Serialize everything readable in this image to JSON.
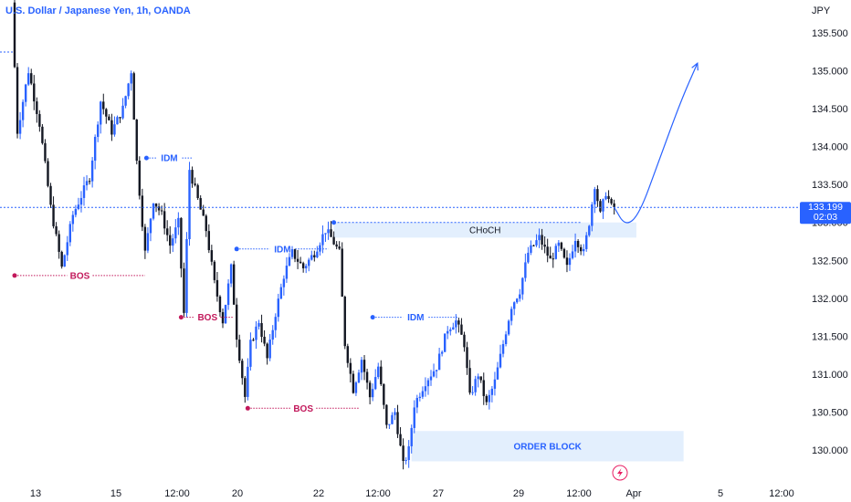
{
  "chart_data": {
    "type": "candlestick",
    "title": "U.S. Dollar / Japanese Yen, 1h, OANDA",
    "currency": "JPY",
    "y_ticks": [
      "135.500",
      "135.000",
      "134.500",
      "134.000",
      "133.500",
      "133.000",
      "132.500",
      "132.000",
      "131.500",
      "131.000",
      "130.500",
      "130.000"
    ],
    "y_tick_values": [
      135.5,
      135.0,
      134.5,
      134.0,
      133.5,
      133.0,
      132.5,
      132.0,
      131.5,
      131.0,
      130.5,
      130.0
    ],
    "ylim": [
      129.6,
      135.8
    ],
    "x_ticks": [
      "13",
      "15",
      "12:00",
      "20",
      "22",
      "12:00",
      "27",
      "29",
      "12:00",
      "Apr",
      "5",
      "12:00"
    ],
    "current_price": {
      "value": 133.199,
      "price_label": "133.199",
      "countdown": "02:03",
      "color": "#2962ff"
    },
    "colors": {
      "up": "#2962ff",
      "down": "#131722",
      "structure": "#c2185b",
      "inducement": "#2962ff",
      "zone_fill": "#e3effd"
    },
    "price_path": [
      {
        "x": 0,
        "y": 135.9
      },
      {
        "x": 4,
        "y": 134.2
      },
      {
        "x": 12,
        "y": 135.0
      },
      {
        "x": 20,
        "y": 134.3
      },
      {
        "x": 28,
        "y": 133.2
      },
      {
        "x": 36,
        "y": 132.4
      },
      {
        "x": 44,
        "y": 133.1
      },
      {
        "x": 56,
        "y": 133.6
      },
      {
        "x": 64,
        "y": 134.6
      },
      {
        "x": 72,
        "y": 134.2
      },
      {
        "x": 80,
        "y": 134.5
      },
      {
        "x": 86,
        "y": 135.0
      },
      {
        "x": 90,
        "y": 133.8
      },
      {
        "x": 96,
        "y": 132.6
      },
      {
        "x": 102,
        "y": 133.3
      },
      {
        "x": 108,
        "y": 133.1
      },
      {
        "x": 114,
        "y": 132.7
      },
      {
        "x": 120,
        "y": 133.0
      },
      {
        "x": 124,
        "y": 131.8
      },
      {
        "x": 128,
        "y": 133.7
      },
      {
        "x": 134,
        "y": 133.3
      },
      {
        "x": 140,
        "y": 132.9
      },
      {
        "x": 146,
        "y": 132.2
      },
      {
        "x": 152,
        "y": 131.7
      },
      {
        "x": 158,
        "y": 132.4
      },
      {
        "x": 162,
        "y": 131.5
      },
      {
        "x": 168,
        "y": 130.7
      },
      {
        "x": 172,
        "y": 131.4
      },
      {
        "x": 178,
        "y": 131.7
      },
      {
        "x": 184,
        "y": 131.2
      },
      {
        "x": 190,
        "y": 131.8
      },
      {
        "x": 196,
        "y": 132.3
      },
      {
        "x": 202,
        "y": 132.6
      },
      {
        "x": 210,
        "y": 132.4
      },
      {
        "x": 218,
        "y": 132.6
      },
      {
        "x": 226,
        "y": 132.9
      },
      {
        "x": 230,
        "y": 132.8
      },
      {
        "x": 236,
        "y": 132.6
      },
      {
        "x": 240,
        "y": 131.4
      },
      {
        "x": 246,
        "y": 130.8
      },
      {
        "x": 252,
        "y": 131.2
      },
      {
        "x": 258,
        "y": 130.7
      },
      {
        "x": 264,
        "y": 131.1
      },
      {
        "x": 270,
        "y": 130.3
      },
      {
        "x": 276,
        "y": 130.5
      },
      {
        "x": 282,
        "y": 129.8
      },
      {
        "x": 286,
        "y": 130.0
      },
      {
        "x": 290,
        "y": 130.6
      },
      {
        "x": 298,
        "y": 130.9
      },
      {
        "x": 306,
        "y": 131.1
      },
      {
        "x": 314,
        "y": 131.6
      },
      {
        "x": 320,
        "y": 131.7
      },
      {
        "x": 326,
        "y": 131.4
      },
      {
        "x": 330,
        "y": 130.7
      },
      {
        "x": 336,
        "y": 131.0
      },
      {
        "x": 342,
        "y": 130.6
      },
      {
        "x": 348,
        "y": 130.9
      },
      {
        "x": 354,
        "y": 131.4
      },
      {
        "x": 360,
        "y": 131.9
      },
      {
        "x": 366,
        "y": 132.1
      },
      {
        "x": 372,
        "y": 132.6
      },
      {
        "x": 380,
        "y": 132.8
      },
      {
        "x": 388,
        "y": 132.5
      },
      {
        "x": 394,
        "y": 132.7
      },
      {
        "x": 400,
        "y": 132.4
      },
      {
        "x": 406,
        "y": 132.8
      },
      {
        "x": 412,
        "y": 132.6
      },
      {
        "x": 416,
        "y": 133.0
      },
      {
        "x": 420,
        "y": 133.5
      },
      {
        "x": 424,
        "y": 133.1
      },
      {
        "x": 428,
        "y": 133.4
      },
      {
        "x": 432,
        "y": 133.2
      }
    ],
    "series_x_range": [
      0,
      432
    ],
    "forecast_path": [
      {
        "x": 432,
        "y": 133.2
      },
      {
        "x": 440,
        "y": 132.95
      },
      {
        "x": 450,
        "y": 133.1
      },
      {
        "x": 464,
        "y": 133.8
      },
      {
        "x": 480,
        "y": 134.6
      },
      {
        "x": 492,
        "y": 135.1
      }
    ],
    "annotations": [
      {
        "type": "BOS",
        "label": "BOS",
        "x1": 0,
        "x2": 94,
        "y": 132.3
      },
      {
        "type": "IDM",
        "label": "IDM",
        "x1": 95,
        "x2": 128,
        "y": 133.85
      },
      {
        "type": "BOS",
        "label": "BOS",
        "x1": 120,
        "x2": 158,
        "y": 131.75
      },
      {
        "type": "IDM",
        "label": "IDM",
        "x1": 160,
        "x2": 226,
        "y": 132.65
      },
      {
        "type": "BOS",
        "label": "BOS",
        "x1": 168,
        "x2": 248,
        "y": 130.55
      },
      {
        "type": "IDM",
        "label": "IDM",
        "x1": 258,
        "x2": 320,
        "y": 131.75
      }
    ],
    "zones": [
      {
        "label": "CHoCH",
        "x1": 230,
        "x2": 448,
        "y_top": 133.0,
        "y_bottom": 132.8
      },
      {
        "label": "ORDER BLOCK",
        "x1": 286,
        "x2": 482,
        "y_top": 130.25,
        "y_bottom": 129.85
      }
    ]
  }
}
